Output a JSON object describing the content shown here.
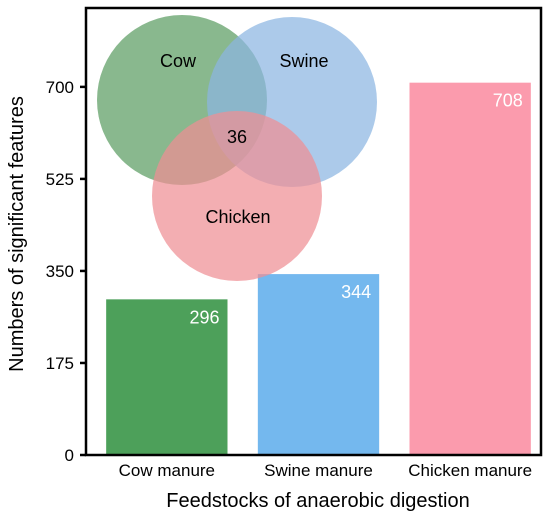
{
  "chart_data": {
    "type": "bar",
    "xlabel": "Feedstocks of anaerobic digestion",
    "ylabel": "Numbers of significant features",
    "ylim": [
      0,
      850
    ],
    "yticks": [
      0,
      175,
      350,
      525,
      700
    ],
    "categories": [
      "Cow manure",
      "Swine manure",
      "Chicken manure"
    ],
    "values": [
      296,
      344,
      708
    ],
    "value_labels": [
      "296",
      "344",
      "708"
    ],
    "colors": [
      "#4da05a",
      "#74b8ee",
      "#fb9bad"
    ],
    "grid": false,
    "venn": {
      "sets": [
        {
          "label": "Cow",
          "color": "#5b9c62"
        },
        {
          "label": "Swine",
          "color": "#8cb6e2"
        },
        {
          "label": "Chicken",
          "color": "#ef8f94"
        }
      ],
      "center_value": "36"
    }
  }
}
